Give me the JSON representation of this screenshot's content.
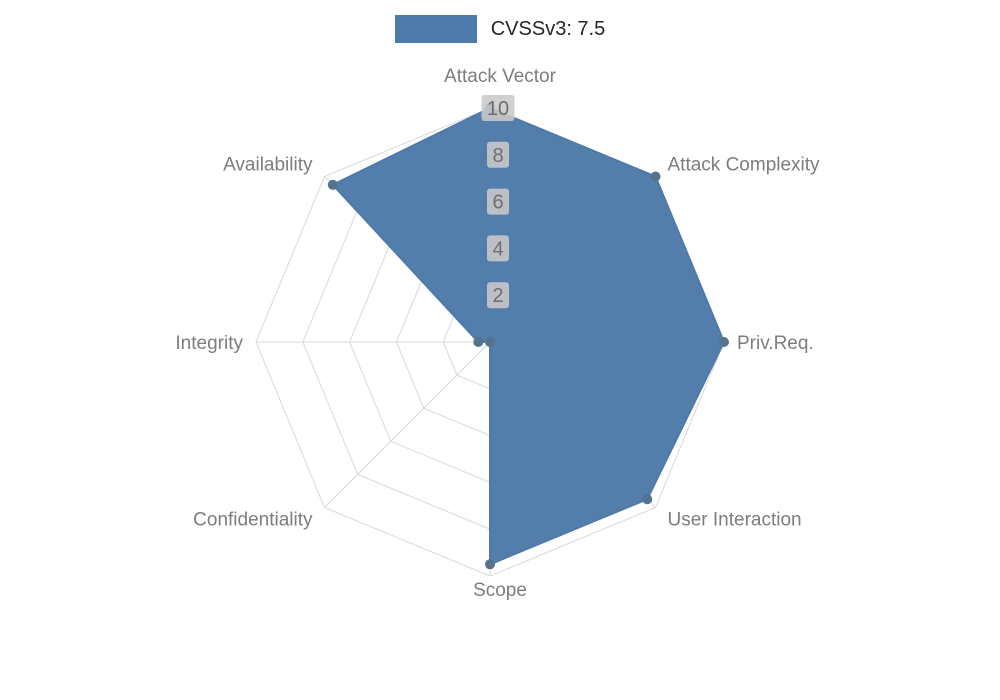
{
  "legend": {
    "label": "CVSSv3: 7.5"
  },
  "chart_data": {
    "type": "radar",
    "title": "",
    "legend_position": "top-center",
    "legend_entries": [
      "CVSSv3: 7.5"
    ],
    "categories": [
      "Attack Vector",
      "Attack Complexity",
      "Priv.Req.",
      "User Interaction",
      "Scope",
      "Confidentiality",
      "Integrity",
      "Availability"
    ],
    "series": [
      {
        "name": "CVSSv3: 7.5",
        "values": [
          10,
          10,
          10,
          9.5,
          9.5,
          0,
          0.5,
          9.5
        ]
      }
    ],
    "ticks": [
      2,
      4,
      6,
      8,
      10
    ],
    "rmin": 0,
    "rmax": 10,
    "grid": true,
    "colors": {
      "fill": "#4d7aa9",
      "stroke": "#4d7aa9",
      "marker": "#56738e",
      "grid": "#d9d9d9",
      "axis_label": "#7d7d7d",
      "tick_label": "#6e6e6e",
      "tick_box": "#c9c9c9",
      "legend_text": "#262626",
      "background": "#ffffff"
    }
  }
}
